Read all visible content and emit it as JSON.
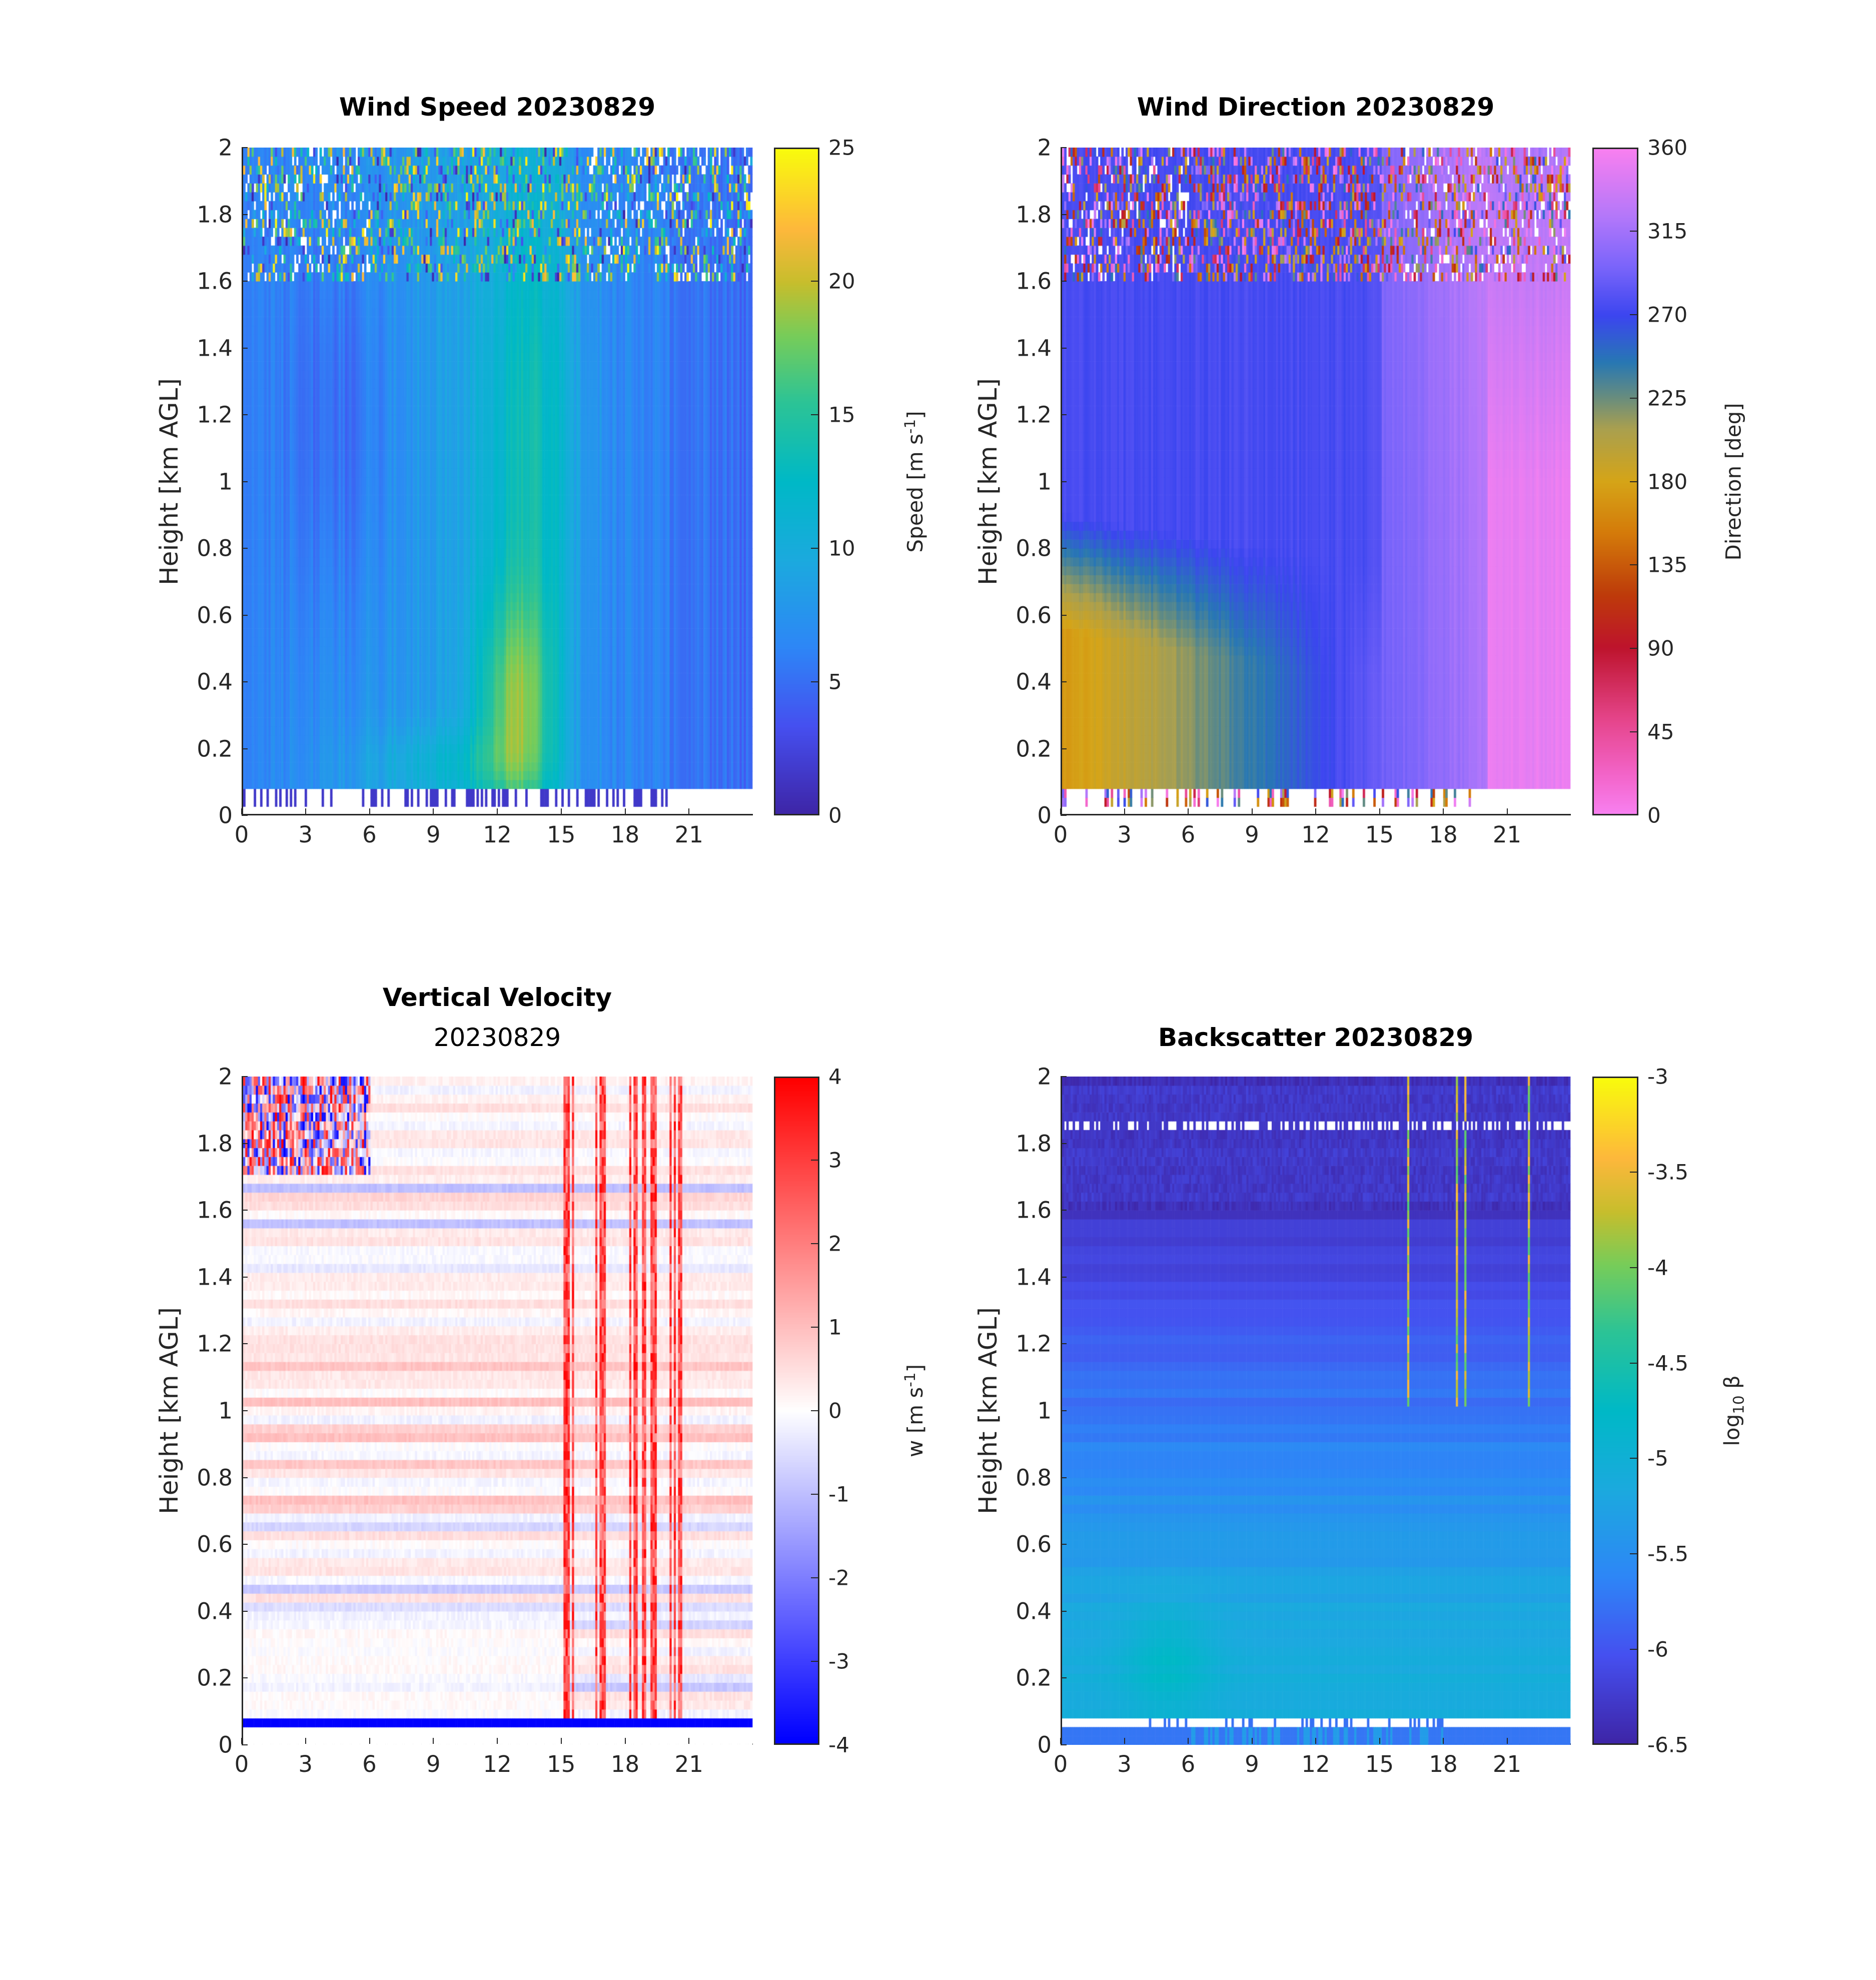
{
  "chart_data": [
    {
      "type": "heatmap",
      "id": "wind-speed",
      "title": "Wind Speed 20230829",
      "subtitle": "",
      "xlabel": "",
      "ylabel": "Height [km AGL]",
      "xlim": [
        0,
        24
      ],
      "ylim": [
        0,
        2
      ],
      "xticks": [
        0,
        3,
        6,
        9,
        12,
        15,
        18,
        21
      ],
      "yticks": [
        0,
        0.2,
        0.4,
        0.6,
        0.8,
        1,
        1.2,
        1.4,
        1.6,
        1.8,
        2
      ],
      "colorbar": {
        "label": "Speed [m s-1]",
        "label_main": "Speed [m s",
        "label_sup": "-1",
        "label_end": "]",
        "clim": [
          0,
          25
        ],
        "ticks": [
          0,
          5,
          10,
          15,
          20,
          25
        ],
        "colormap": "parula"
      },
      "features": [
        {
          "description": "Lowest gates (below ~0.07 km) mostly missing with sparse low values",
          "x_range": [
            0,
            24
          ],
          "y_range": [
            0,
            0.07
          ],
          "value": 1
        },
        {
          "description": "Noisy, partially missing data above ~1.6 km",
          "x_range": [
            0,
            24
          ],
          "y_range": [
            1.6,
            2
          ]
        },
        {
          "description": "Low-level jet maximum near 12-13 h at ~0.3 km",
          "x": 12.8,
          "y": 0.3,
          "value": 19
        },
        {
          "description": "Weaker winds (~4-6 m/s) early morning 0-6 h",
          "x_range": [
            0,
            6
          ],
          "y_range": [
            0.1,
            1.6
          ],
          "value": 5
        },
        {
          "description": "Moderate winds (~11-15 m/s) 9-15 h aloft",
          "x_range": [
            9,
            15
          ],
          "y_range": [
            0.2,
            1.8
          ],
          "value": 13
        },
        {
          "description": "Decreasing speeds (~7-10 m/s) after 15 h",
          "x_range": [
            15,
            24
          ],
          "y_range": [
            0.1,
            2
          ],
          "value": 8
        }
      ]
    },
    {
      "type": "heatmap",
      "id": "wind-direction",
      "title": "Wind Direction 20230829",
      "subtitle": "",
      "xlabel": "",
      "ylabel": "Height [km AGL]",
      "xlim": [
        0,
        24
      ],
      "ylim": [
        0,
        2
      ],
      "xticks": [
        0,
        3,
        6,
        9,
        12,
        15,
        18,
        21
      ],
      "yticks": [
        0,
        0.2,
        0.4,
        0.6,
        0.8,
        1,
        1.2,
        1.4,
        1.6,
        1.8,
        2
      ],
      "colorbar": {
        "label": "Direction [deg]",
        "label_main": "Direction [deg]",
        "label_sup": "",
        "label_end": "",
        "clim": [
          0,
          360
        ],
        "ticks": [
          0,
          45,
          90,
          135,
          180,
          225,
          270,
          315,
          360
        ],
        "colormap": "cyclic-phase"
      },
      "features": [
        {
          "description": "Southerly (~165-195 deg) near surface 0-6 h below 0.6 km",
          "x_range": [
            0,
            6
          ],
          "y_range": [
            0.07,
            0.6
          ],
          "value": 170
        },
        {
          "description": "Transition to southwesterly (~225-250 deg) 6-15 h",
          "x_range": [
            6,
            15
          ],
          "y_range": [
            0.07,
            1.0
          ],
          "value": 235
        },
        {
          "description": "Westerly (~270-290 deg) aloft most of the day",
          "x_range": [
            0,
            20
          ],
          "y_range": [
            0.8,
            1.8
          ],
          "value": 280
        },
        {
          "description": "Northwesterly (~310-330 deg) 15-20 h",
          "x_range": [
            15,
            20
          ],
          "y_range": [
            0.07,
            1.6
          ],
          "value": 315
        },
        {
          "description": "Northerly (~350-10 deg) after 20 h",
          "x_range": [
            20,
            24
          ],
          "y_range": [
            0.07,
            1.2
          ],
          "value": 355
        },
        {
          "description": "Noisy, partially missing data above ~1.6 km",
          "x_range": [
            0,
            24
          ],
          "y_range": [
            1.6,
            2
          ]
        }
      ]
    },
    {
      "type": "heatmap",
      "id": "vertical-velocity",
      "title": "Vertical Velocity",
      "subtitle": "20230829",
      "xlabel": "",
      "ylabel": "Height [km AGL]",
      "xlim": [
        0,
        24
      ],
      "ylim": [
        0,
        2
      ],
      "xticks": [
        0,
        3,
        6,
        9,
        12,
        15,
        18,
        21
      ],
      "yticks": [
        0,
        0.2,
        0.4,
        0.6,
        0.8,
        1,
        1.2,
        1.4,
        1.6,
        1.8,
        2
      ],
      "colorbar": {
        "label": "w [m s-1]",
        "label_main": "w [m s",
        "label_sup": "-1",
        "label_end": "]",
        "clim": [
          -4,
          4
        ],
        "ticks": [
          -4,
          -3,
          -2,
          -1,
          0,
          1,
          2,
          3,
          4
        ],
        "colormap": "blue-white-red"
      },
      "features": [
        {
          "description": "Strong negative band at lowest gate (~0.07 km)",
          "x_range": [
            0,
            24
          ],
          "y": 0.07,
          "value": -4
        },
        {
          "description": "Noisy +/- values above 1.7 km early (0-6 h)",
          "x_range": [
            0,
            6
          ],
          "y_range": [
            1.7,
            2
          ]
        },
        {
          "description": "Updraft streaks 15-21 h",
          "x_range": [
            15,
            21
          ],
          "y_range": [
            0.1,
            2
          ],
          "value": 2.5
        },
        {
          "description": "Slightly positive horizontal banding throughout",
          "x_range": [
            0,
            24
          ],
          "y_range": [
            0.1,
            2
          ],
          "value": 0.3
        }
      ]
    },
    {
      "type": "heatmap",
      "id": "backscatter",
      "title": "Backscatter 20230829",
      "subtitle": "",
      "xlabel": "",
      "ylabel": "Height [km AGL]",
      "xlim": [
        0,
        24
      ],
      "ylim": [
        0,
        2
      ],
      "xticks": [
        0,
        3,
        6,
        9,
        12,
        15,
        18,
        21
      ],
      "yticks": [
        0,
        0.2,
        0.4,
        0.6,
        0.8,
        1,
        1.2,
        1.4,
        1.6,
        1.8,
        2
      ],
      "colorbar": {
        "label": "log10 beta",
        "label_main": "log",
        "label_sub": "10",
        "label_end": " β",
        "clim": [
          -6.5,
          -3
        ],
        "ticks": [
          -6.5,
          -6,
          -5.5,
          -5,
          -4.5,
          -4,
          -3.5,
          -3
        ],
        "colormap": "parula"
      },
      "features": [
        {
          "description": "Boundary layer aerosol (~-5) below 0.6 km",
          "x_range": [
            0,
            24
          ],
          "y_range": [
            0.08,
            0.6
          ],
          "value": -5.1
        },
        {
          "description": "Enhanced backscatter near 4-6 h at ~0.25 km",
          "x": 5,
          "y": 0.25,
          "value": -4.8
        },
        {
          "description": "Clean free troposphere (~-6.3) above 1.6 km",
          "x_range": [
            0,
            24
          ],
          "y_range": [
            1.6,
            2
          ],
          "value": -6.3
        },
        {
          "description": "Cloud streaks 12-22 h between 1.2-2 km",
          "x_range": [
            12,
            22
          ],
          "y_range": [
            1.2,
            2
          ],
          "value": -4
        },
        {
          "description": "Surface layer below 0.04 km around -5.7",
          "x_range": [
            0,
            24
          ],
          "y_range": [
            0.01,
            0.04
          ],
          "value": -5.7
        }
      ]
    }
  ]
}
